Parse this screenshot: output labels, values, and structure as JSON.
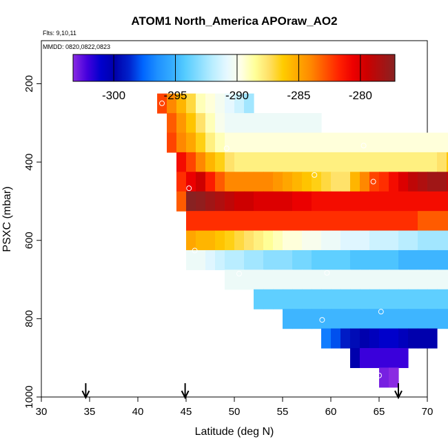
{
  "chart_data": {
    "type": "heatmap",
    "title": "ATOM1 North_America APOraw_AO2",
    "flights_note": "Flts: 9,10,11",
    "dates_note": "MMDD: 0820,0822,0823",
    "xlabel": "Latitude (deg N)",
    "ylabel": "PSXC (mbar)",
    "xlim": [
      30,
      70
    ],
    "ylim": [
      1000,
      90
    ],
    "x_ticks": [
      30,
      35,
      40,
      45,
      50,
      55,
      60,
      65,
      70
    ],
    "x_tick_labels": [
      "30",
      "35",
      "40",
      "45",
      "50",
      "55",
      "60",
      "65",
      "70"
    ],
    "y_ticks": [
      200,
      400,
      600,
      800,
      1000
    ],
    "y_tick_labels": [
      "200",
      "400",
      "600",
      "800",
      "1000"
    ],
    "colorbar": {
      "range": [
        -303.3,
        -277.2
      ],
      "ticks": [
        -300,
        -295,
        -290,
        -285,
        -280
      ],
      "tick_labels": [
        "-300",
        "-295",
        "-290",
        "-285",
        "-280"
      ],
      "colors": [
        "#8a2be2",
        "#4400dd",
        "#0000cc",
        "#0000aa",
        "#0022cc",
        "#0066ff",
        "#1e90ff",
        "#33aaff",
        "#55ccff",
        "#88ddff",
        "#bbeeff",
        "#e6f8ff",
        "#ffffe6",
        "#ffff99",
        "#ffe066",
        "#ffcc00",
        "#ffaa00",
        "#ff8800",
        "#ff5500",
        "#ff2200",
        "#ee0000",
        "#cc0000",
        "#aa1111",
        "#882222"
      ]
    },
    "flight_markers_latitude": [
      34.6,
      44.9,
      67.0
    ],
    "rows": [
      {
        "p": 250,
        "x0": 42.0,
        "values": [
          -282.5,
          -284,
          -285.5,
          -287,
          -289,
          -289.5,
          -290.2,
          -290.8,
          -291.5,
          -292.5
        ]
      },
      {
        "p": 300,
        "x0": 43.0,
        "values": [
          -283,
          -284.5,
          -286,
          -287.5,
          -289,
          -290,
          -290.5,
          -290.5,
          -290.5,
          -290.5,
          -290.5,
          -290.5,
          -290.5,
          -290.5,
          -290.5,
          -290.5
        ]
      },
      {
        "p": 350,
        "x0": 43.0,
        "values": [
          -282.5,
          -284,
          -285,
          -286.5,
          -288,
          -289,
          -289.5,
          -289.5,
          -289.5,
          -289.5,
          -289.5,
          -289.5,
          -289.5,
          -289.5,
          -289.5,
          -289.5,
          -289.5,
          -289.5,
          -289.5,
          -289.5,
          -289.5,
          -289.5,
          -289.5,
          -289.5,
          -289.5,
          -289.5,
          -289.5,
          -289.5,
          -289.5,
          -289.5,
          -289.5
        ]
      },
      {
        "p": 400,
        "x0": 44.0,
        "values": [
          -281,
          -282.5,
          -284,
          -285.5,
          -286.5,
          -287.5,
          -288,
          -288,
          -288,
          -288,
          -288,
          -288,
          -288,
          -288,
          -288,
          -288,
          -288,
          -288,
          -288,
          -288,
          -288,
          -288,
          -288,
          -288,
          -288,
          -288,
          -288,
          -287.5,
          -286,
          -284.5
        ]
      },
      {
        "p": 450,
        "x0": 44.0,
        "values": [
          -282,
          -280.5,
          -279.5,
          -281.5,
          -283,
          -284,
          -284,
          -284,
          -284,
          -284,
          -284.5,
          -285,
          -285.5,
          -286,
          -286.5,
          -287,
          -287.5,
          -287.5,
          -285.5,
          -284,
          -282.5,
          -282,
          -281,
          -280,
          -279,
          -278.5,
          -278,
          -278,
          -279,
          -279
        ]
      },
      {
        "p": 500,
        "x0": 44.0,
        "values": [
          -283,
          -277.2,
          -277.5,
          -278,
          -278.5,
          -279,
          -279.5,
          -279.5,
          -280,
          -280,
          -280,
          -280,
          -280.5,
          -280.5,
          -281,
          -281,
          -281,
          -281,
          -281,
          -281,
          -281,
          -281,
          -281,
          -281,
          -281,
          -281,
          -281,
          -281,
          -281,
          -281
        ]
      },
      {
        "p": 550,
        "x0": 45.0,
        "values": [
          -282,
          -282,
          -282,
          -282,
          -282,
          -282,
          -282,
          -282,
          -282,
          -282,
          -282,
          -282,
          -282,
          -282,
          -282,
          -282,
          -282,
          -282,
          -282,
          -282,
          -282,
          -282,
          -282,
          -282,
          -283,
          -283,
          -283,
          -283,
          -283,
          -283
        ]
      },
      {
        "p": 600,
        "x0": 45.0,
        "values": [
          -285,
          -285.5,
          -285.5,
          -286,
          -286.5,
          -287,
          -287.5,
          -288,
          -288.5,
          -289,
          -289.5,
          -289.5,
          -290,
          -290,
          -290.5,
          -290.5,
          -291,
          -291,
          -291,
          -291.5,
          -291.5,
          -291.5,
          -292,
          -292,
          -292.5,
          -292.5,
          -292.5,
          -292.5,
          -292.5,
          -292.5
        ]
      },
      {
        "p": 650,
        "x0": 45.0,
        "values": [
          -290.5,
          -290.5,
          -291,
          -291.5,
          -292,
          -292,
          -292.5,
          -292.5,
          -293,
          -293,
          -293,
          -293.5,
          -293.5,
          -294,
          -294,
          -294,
          -294,
          -294.5,
          -294.5,
          -294.5,
          -294.5,
          -294.5,
          -295,
          -295,
          -295,
          -295,
          -295,
          -295,
          -295,
          -292.5
        ]
      },
      {
        "p": 700,
        "x0": 49.0,
        "values": [
          -290.5,
          -290.5,
          -290.5,
          -290.5,
          -290.5,
          -290.5,
          -290.5,
          -290.5,
          -290.5,
          -290.5,
          -290.5,
          -290.5,
          -290.5,
          -290.5,
          -290.5,
          -290.5,
          -290.5,
          -290.5,
          -290.5,
          -290.5,
          -290.5,
          -290.5,
          -290.5,
          -290.5
        ]
      },
      {
        "p": 750,
        "x0": 52.0,
        "values": [
          -294,
          -294,
          -294,
          -294,
          -294,
          -294,
          -294,
          -294,
          -294,
          -294,
          -294,
          -294,
          -294,
          -294,
          -294,
          -294,
          -294,
          -294,
          -294,
          -294,
          -294,
          -294,
          -294,
          -294,
          -294,
          -294,
          -294,
          -294,
          -294,
          -294
        ]
      },
      {
        "p": 800,
        "x0": 55.0,
        "values": [
          -295,
          -295,
          -295,
          -295,
          -295,
          -295,
          -295,
          -295,
          -295,
          -295,
          -295,
          -295,
          -295,
          -295,
          -295,
          -295,
          -295,
          -295,
          -295,
          -295,
          -295,
          -295
        ]
      },
      {
        "p": 850,
        "x0": 59.0,
        "values": [
          -297,
          -298,
          -299,
          -299.5,
          -300,
          -300.5,
          -301,
          -301,
          -300.5,
          -300,
          -300,
          -300
        ]
      },
      {
        "p": 900,
        "x0": 62.0,
        "values": [
          -300,
          -302,
          -302,
          -302,
          -302,
          -302
        ]
      },
      {
        "p": 950,
        "x0": 65.0,
        "values": [
          -303,
          -303.3
        ]
      }
    ],
    "circles": [
      {
        "lat": 42.5,
        "p": 250
      },
      {
        "lat": 49.2,
        "p": 365
      },
      {
        "lat": 63.4,
        "p": 358
      },
      {
        "lat": 58.3,
        "p": 433
      },
      {
        "lat": 64.4,
        "p": 450
      },
      {
        "lat": 45.3,
        "p": 467
      },
      {
        "lat": 45.9,
        "p": 626
      },
      {
        "lat": 50.5,
        "p": 685
      },
      {
        "lat": 59.6,
        "p": 683
      },
      {
        "lat": 65.2,
        "p": 782
      },
      {
        "lat": 59.1,
        "p": 803
      },
      {
        "lat": 65.0,
        "p": 945
      }
    ]
  }
}
